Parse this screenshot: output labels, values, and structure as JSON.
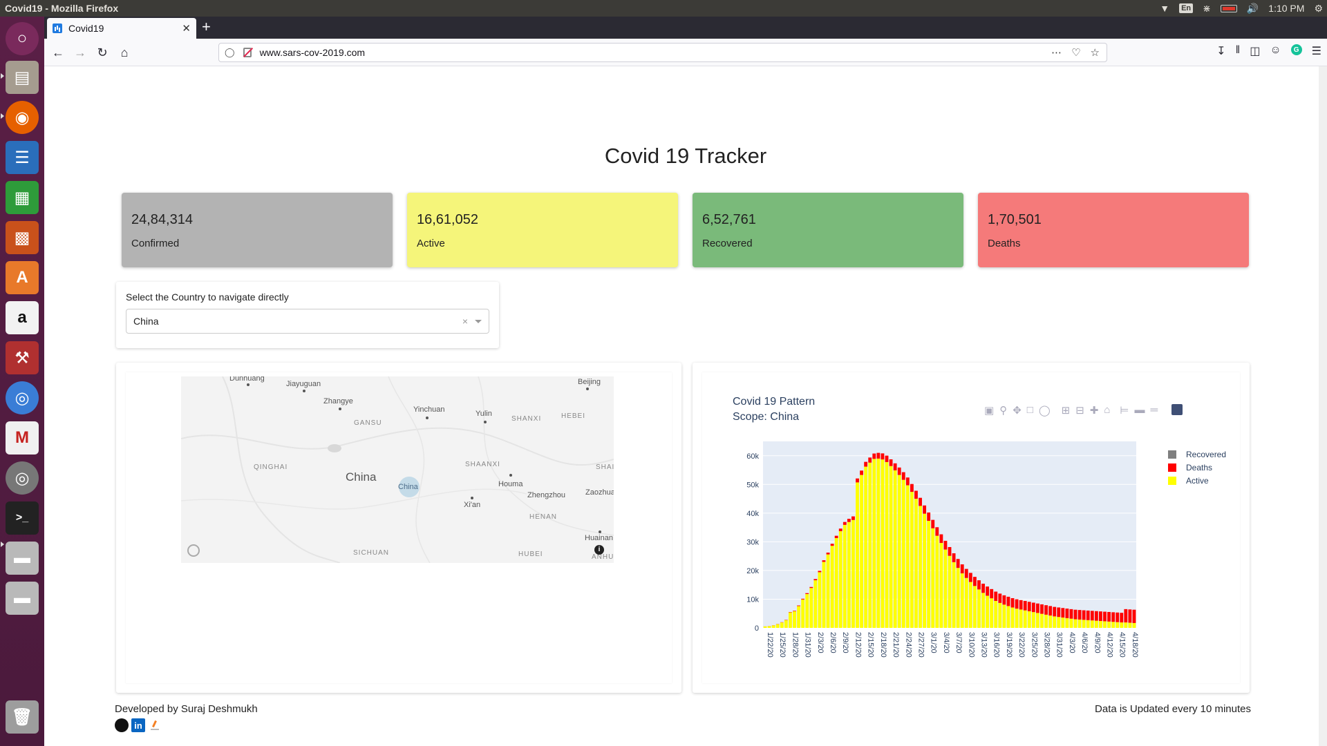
{
  "system": {
    "window_title": "Covid19 - Mozilla Firefox",
    "keyboard_layout": "En",
    "clock": "1:10 PM"
  },
  "browser": {
    "tab_title": "Covid19",
    "url": "www.sars-cov-2019.com"
  },
  "page": {
    "title": "Covid 19 Tracker",
    "cards": [
      {
        "value": "24,84,314",
        "label": "Confirmed",
        "color": "#b3b3b3"
      },
      {
        "value": "16,61,052",
        "label": "Active",
        "color": "#f5f57a"
      },
      {
        "value": "6,52,761",
        "label": "Recovered",
        "color": "#7aba7a"
      },
      {
        "value": "1,70,501",
        "label": "Deaths",
        "color": "#f57a7a"
      }
    ],
    "country_select": {
      "label": "Select the Country to navigate directly",
      "value": "China",
      "clear": "×"
    },
    "map": {
      "highlight": "China",
      "country_label": "China",
      "places": [
        "Dunhuang",
        "Jiayuguan",
        "Zhangye",
        "Yinchuan",
        "Yulin",
        "Beijing",
        "Houma",
        "Zhengzhou",
        "Zaozhuang",
        "Xi'an",
        "Huainan"
      ],
      "regions": [
        "GANSU",
        "SHANXI",
        "HEBEI",
        "QINGHAI",
        "SHAANXI",
        "SHAI",
        "HENAN",
        "SICHUAN",
        "HUBEI",
        "ANHU"
      ],
      "info_glyph": "i"
    },
    "footer": {
      "developer": "Developed by Suraj Deshmukh",
      "update_note": "Data is Updated every 10 minutes",
      "linkedin_text": "in"
    }
  },
  "chart_data": {
    "type": "bar",
    "stacked": true,
    "title": "Covid 19 Pattern",
    "subtitle": "Scope: China",
    "x_start": "1/22/20",
    "x_end": "4/20/20",
    "x_tick_labels": [
      "1/22/20",
      "1/25/20",
      "1/28/20",
      "1/31/20",
      "2/3/20",
      "2/6/20",
      "2/9/20",
      "2/12/20",
      "2/15/20",
      "2/18/20",
      "2/21/20",
      "2/24/20",
      "2/27/20",
      "3/1/20",
      "3/4/20",
      "3/7/20",
      "3/10/20",
      "3/13/20",
      "3/16/20",
      "3/19/20",
      "3/22/20",
      "3/25/20",
      "3/28/20",
      "3/31/20",
      "4/3/20",
      "4/6/20",
      "4/9/20",
      "4/12/20",
      "4/15/20",
      "4/18/20"
    ],
    "y_tick_labels": [
      "0",
      "10k",
      "20k",
      "30k",
      "40k",
      "50k",
      "60k"
    ],
    "ylim": [
      0,
      65000
    ],
    "legend_position": "top-right",
    "grid": true,
    "series": [
      {
        "name": "Recovered",
        "color": "#7f7f7f",
        "values": []
      },
      {
        "name": "Deaths",
        "color": "#ff0000",
        "values": [
          17,
          25,
          41,
          56,
          80,
          106,
          132,
          170,
          213,
          259,
          304,
          361,
          425,
          490,
          562,
          632,
          717,
          804,
          904,
          1011,
          1111,
          1259,
          1380,
          1523,
          1665,
          1770,
          1868,
          2004,
          2118,
          2236,
          2345,
          2442,
          2592,
          2663,
          2715,
          2744,
          2788,
          2835,
          2870,
          2912,
          2943,
          2981,
          3012,
          3042,
          3070,
          3097,
          3119,
          3136,
          3158,
          3169,
          3176,
          3189,
          3199,
          3213,
          3226,
          3237,
          3245,
          3249,
          3253,
          3259,
          3274,
          3274,
          3281,
          3285,
          3291,
          3296,
          3299,
          3304,
          3308,
          3309,
          3316,
          3322,
          3326,
          3330,
          3333,
          3335,
          3335,
          3337,
          3339,
          3340,
          3343,
          3343,
          3345,
          3345,
          3349,
          3352,
          4632,
          4632,
          4636
        ]
      },
      {
        "name": "Active",
        "color": "#ffff00",
        "values": [
          503,
          597,
          881,
          1300,
          1900,
          2700,
          5400,
          5800,
          7600,
          9900,
          11800,
          13900,
          16600,
          19400,
          23000,
          25600,
          28600,
          31300,
          33700,
          35900,
          36900,
          37600,
          50700,
          53300,
          56200,
          57600,
          58900,
          59000,
          58700,
          57800,
          56400,
          54900,
          53300,
          51600,
          49700,
          47400,
          45000,
          42500,
          39800,
          37300,
          34700,
          32100,
          29600,
          27300,
          25100,
          22900,
          20900,
          19000,
          17400,
          16000,
          14600,
          13400,
          12200,
          11200,
          10300,
          9400,
          8700,
          8100,
          7600,
          7100,
          6700,
          6400,
          6100,
          5800,
          5500,
          5200,
          4900,
          4600,
          4300,
          4000,
          3800,
          3600,
          3400,
          3200,
          3000,
          2900,
          2800,
          2700,
          2600,
          2500,
          2400,
          2300,
          2200,
          2100,
          2000,
          1900,
          1900,
          1800,
          1700
        ]
      }
    ]
  }
}
